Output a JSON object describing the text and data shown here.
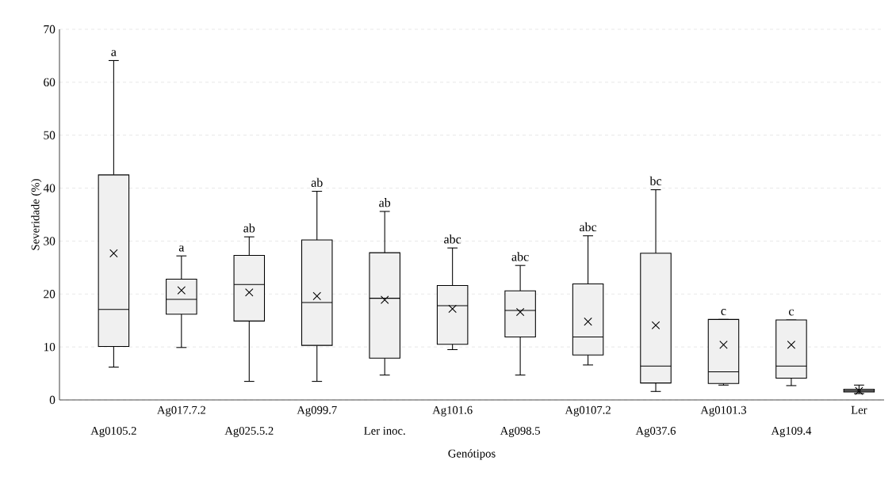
{
  "chart_data": {
    "type": "box",
    "xlabel": "Genótipos",
    "ylabel": "Severidade (%)",
    "categories": [
      "Ag0105.2",
      "Ag017.7.2",
      "Ag025.5.2",
      "Ag099.7",
      "Ler inoc.",
      "Ag101.6",
      "Ag098.5",
      "Ag0107.2",
      "Ag037.6",
      "Ag0101.3",
      "Ag109.4",
      "Ler"
    ],
    "boxes": [
      {
        "low": 6.2,
        "q1": 10.1,
        "median": 17.1,
        "q3": 42.5,
        "high": 64.1,
        "mean": 27.7
      },
      {
        "low": 9.9,
        "q1": 16.2,
        "median": 19.0,
        "q3": 22.8,
        "high": 27.2,
        "mean": 20.7
      },
      {
        "low": 3.5,
        "q1": 14.9,
        "median": 21.8,
        "q3": 27.3,
        "high": 30.8,
        "mean": 20.3
      },
      {
        "low": 3.5,
        "q1": 10.3,
        "median": 18.4,
        "q3": 30.2,
        "high": 39.4,
        "mean": 19.6
      },
      {
        "low": 4.7,
        "q1": 7.9,
        "median": 19.2,
        "q3": 27.8,
        "high": 35.6,
        "mean": 18.9
      },
      {
        "low": 9.5,
        "q1": 10.5,
        "median": 17.8,
        "q3": 21.6,
        "high": 28.7,
        "mean": 17.2
      },
      {
        "low": 4.7,
        "q1": 11.9,
        "median": 16.9,
        "q3": 20.6,
        "high": 25.4,
        "mean": 16.6
      },
      {
        "low": 6.6,
        "q1": 8.5,
        "median": 11.9,
        "q3": 21.9,
        "high": 31.0,
        "mean": 14.8
      },
      {
        "low": 1.6,
        "q1": 3.2,
        "median": 6.4,
        "q3": 27.7,
        "high": 39.7,
        "mean": 14.1
      },
      {
        "low": 2.8,
        "q1": 3.1,
        "median": 5.3,
        "q3": 15.2,
        "high": 15.2,
        "mean": 10.4
      },
      {
        "low": 2.7,
        "q1": 4.1,
        "median": 6.4,
        "q3": 15.1,
        "high": 15.1,
        "mean": 10.4
      },
      {
        "low": 1.2,
        "q1": 1.5,
        "median": 1.7,
        "q3": 2.0,
        "high": 2.8,
        "mean": 1.7
      }
    ],
    "ylim": [
      0,
      70
    ],
    "yticks": [
      0,
      10,
      20,
      30,
      40,
      50,
      60,
      70
    ],
    "grid": "y",
    "annotations": [
      "a",
      "a",
      "ab",
      "ab",
      "ab",
      "abc",
      "abc",
      "abc",
      "bc",
      "c",
      "c"
    ]
  }
}
